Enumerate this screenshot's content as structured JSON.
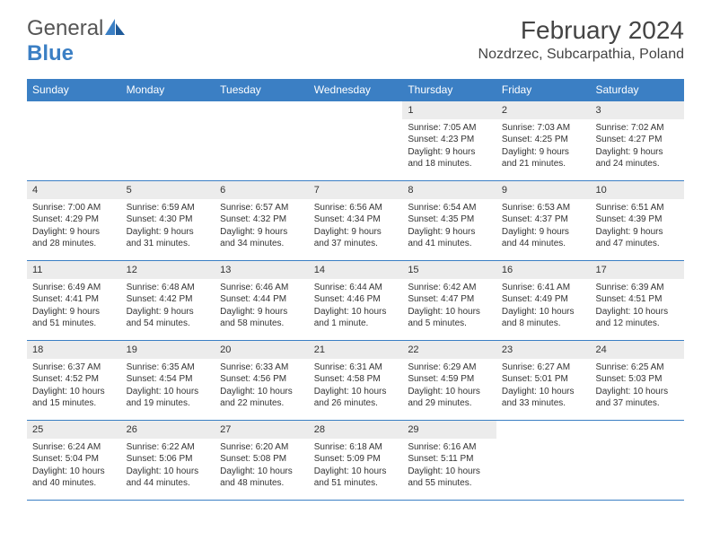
{
  "brand": {
    "general": "General",
    "blue": "Blue"
  },
  "title": "February 2024",
  "location": "Nozdrzec, Subcarpathia, Poland",
  "colors": {
    "header_bg": "#3b7fc4",
    "daynum_bg": "#ececec",
    "text": "#333333",
    "background": "#ffffff"
  },
  "typography": {
    "title_fontsize": 28,
    "location_fontsize": 16,
    "header_fontsize": 12,
    "daynum_fontsize": 11,
    "body_fontsize": 10
  },
  "day_names": [
    "Sunday",
    "Monday",
    "Tuesday",
    "Wednesday",
    "Thursday",
    "Friday",
    "Saturday"
  ],
  "weeks": [
    [
      null,
      null,
      null,
      null,
      {
        "n": "1",
        "sunrise": "Sunrise: 7:05 AM",
        "sunset": "Sunset: 4:23 PM",
        "day1": "Daylight: 9 hours",
        "day2": "and 18 minutes."
      },
      {
        "n": "2",
        "sunrise": "Sunrise: 7:03 AM",
        "sunset": "Sunset: 4:25 PM",
        "day1": "Daylight: 9 hours",
        "day2": "and 21 minutes."
      },
      {
        "n": "3",
        "sunrise": "Sunrise: 7:02 AM",
        "sunset": "Sunset: 4:27 PM",
        "day1": "Daylight: 9 hours",
        "day2": "and 24 minutes."
      }
    ],
    [
      {
        "n": "4",
        "sunrise": "Sunrise: 7:00 AM",
        "sunset": "Sunset: 4:29 PM",
        "day1": "Daylight: 9 hours",
        "day2": "and 28 minutes."
      },
      {
        "n": "5",
        "sunrise": "Sunrise: 6:59 AM",
        "sunset": "Sunset: 4:30 PM",
        "day1": "Daylight: 9 hours",
        "day2": "and 31 minutes."
      },
      {
        "n": "6",
        "sunrise": "Sunrise: 6:57 AM",
        "sunset": "Sunset: 4:32 PM",
        "day1": "Daylight: 9 hours",
        "day2": "and 34 minutes."
      },
      {
        "n": "7",
        "sunrise": "Sunrise: 6:56 AM",
        "sunset": "Sunset: 4:34 PM",
        "day1": "Daylight: 9 hours",
        "day2": "and 37 minutes."
      },
      {
        "n": "8",
        "sunrise": "Sunrise: 6:54 AM",
        "sunset": "Sunset: 4:35 PM",
        "day1": "Daylight: 9 hours",
        "day2": "and 41 minutes."
      },
      {
        "n": "9",
        "sunrise": "Sunrise: 6:53 AM",
        "sunset": "Sunset: 4:37 PM",
        "day1": "Daylight: 9 hours",
        "day2": "and 44 minutes."
      },
      {
        "n": "10",
        "sunrise": "Sunrise: 6:51 AM",
        "sunset": "Sunset: 4:39 PM",
        "day1": "Daylight: 9 hours",
        "day2": "and 47 minutes."
      }
    ],
    [
      {
        "n": "11",
        "sunrise": "Sunrise: 6:49 AM",
        "sunset": "Sunset: 4:41 PM",
        "day1": "Daylight: 9 hours",
        "day2": "and 51 minutes."
      },
      {
        "n": "12",
        "sunrise": "Sunrise: 6:48 AM",
        "sunset": "Sunset: 4:42 PM",
        "day1": "Daylight: 9 hours",
        "day2": "and 54 minutes."
      },
      {
        "n": "13",
        "sunrise": "Sunrise: 6:46 AM",
        "sunset": "Sunset: 4:44 PM",
        "day1": "Daylight: 9 hours",
        "day2": "and 58 minutes."
      },
      {
        "n": "14",
        "sunrise": "Sunrise: 6:44 AM",
        "sunset": "Sunset: 4:46 PM",
        "day1": "Daylight: 10 hours",
        "day2": "and 1 minute."
      },
      {
        "n": "15",
        "sunrise": "Sunrise: 6:42 AM",
        "sunset": "Sunset: 4:47 PM",
        "day1": "Daylight: 10 hours",
        "day2": "and 5 minutes."
      },
      {
        "n": "16",
        "sunrise": "Sunrise: 6:41 AM",
        "sunset": "Sunset: 4:49 PM",
        "day1": "Daylight: 10 hours",
        "day2": "and 8 minutes."
      },
      {
        "n": "17",
        "sunrise": "Sunrise: 6:39 AM",
        "sunset": "Sunset: 4:51 PM",
        "day1": "Daylight: 10 hours",
        "day2": "and 12 minutes."
      }
    ],
    [
      {
        "n": "18",
        "sunrise": "Sunrise: 6:37 AM",
        "sunset": "Sunset: 4:52 PM",
        "day1": "Daylight: 10 hours",
        "day2": "and 15 minutes."
      },
      {
        "n": "19",
        "sunrise": "Sunrise: 6:35 AM",
        "sunset": "Sunset: 4:54 PM",
        "day1": "Daylight: 10 hours",
        "day2": "and 19 minutes."
      },
      {
        "n": "20",
        "sunrise": "Sunrise: 6:33 AM",
        "sunset": "Sunset: 4:56 PM",
        "day1": "Daylight: 10 hours",
        "day2": "and 22 minutes."
      },
      {
        "n": "21",
        "sunrise": "Sunrise: 6:31 AM",
        "sunset": "Sunset: 4:58 PM",
        "day1": "Daylight: 10 hours",
        "day2": "and 26 minutes."
      },
      {
        "n": "22",
        "sunrise": "Sunrise: 6:29 AM",
        "sunset": "Sunset: 4:59 PM",
        "day1": "Daylight: 10 hours",
        "day2": "and 29 minutes."
      },
      {
        "n": "23",
        "sunrise": "Sunrise: 6:27 AM",
        "sunset": "Sunset: 5:01 PM",
        "day1": "Daylight: 10 hours",
        "day2": "and 33 minutes."
      },
      {
        "n": "24",
        "sunrise": "Sunrise: 6:25 AM",
        "sunset": "Sunset: 5:03 PM",
        "day1": "Daylight: 10 hours",
        "day2": "and 37 minutes."
      }
    ],
    [
      {
        "n": "25",
        "sunrise": "Sunrise: 6:24 AM",
        "sunset": "Sunset: 5:04 PM",
        "day1": "Daylight: 10 hours",
        "day2": "and 40 minutes."
      },
      {
        "n": "26",
        "sunrise": "Sunrise: 6:22 AM",
        "sunset": "Sunset: 5:06 PM",
        "day1": "Daylight: 10 hours",
        "day2": "and 44 minutes."
      },
      {
        "n": "27",
        "sunrise": "Sunrise: 6:20 AM",
        "sunset": "Sunset: 5:08 PM",
        "day1": "Daylight: 10 hours",
        "day2": "and 48 minutes."
      },
      {
        "n": "28",
        "sunrise": "Sunrise: 6:18 AM",
        "sunset": "Sunset: 5:09 PM",
        "day1": "Daylight: 10 hours",
        "day2": "and 51 minutes."
      },
      {
        "n": "29",
        "sunrise": "Sunrise: 6:16 AM",
        "sunset": "Sunset: 5:11 PM",
        "day1": "Daylight: 10 hours",
        "day2": "and 55 minutes."
      },
      null,
      null
    ]
  ]
}
